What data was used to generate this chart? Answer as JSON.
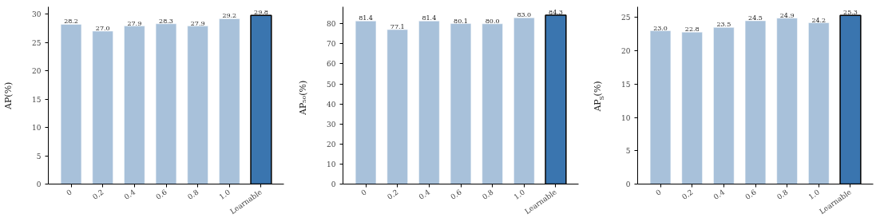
{
  "chart_data": [
    {
      "type": "bar",
      "categories": [
        "0",
        "0.2",
        "0.4",
        "0.6",
        "0.8",
        "1.0",
        "Learnable"
      ],
      "values": [
        28.2,
        27.0,
        27.9,
        28.3,
        27.9,
        29.2,
        29.8
      ],
      "value_labels": [
        "28.2",
        "27.0",
        "27.9",
        "28.3",
        "27.9",
        "29.2",
        "29.8"
      ],
      "colors": [
        "#a8c1da",
        "#a8c1da",
        "#a8c1da",
        "#a8c1da",
        "#a8c1da",
        "#a8c1da",
        "#3a75af"
      ],
      "ylabel": "AP(%)",
      "ylim": [
        0,
        31.3
      ],
      "yticks": [
        0,
        5,
        10,
        15,
        20,
        25,
        30
      ],
      "grid": false
    },
    {
      "type": "bar",
      "categories": [
        "0",
        "0.2",
        "0.4",
        "0.6",
        "0.8",
        "1.0",
        "Learnable"
      ],
      "values": [
        81.4,
        77.1,
        81.4,
        80.1,
        80.0,
        83.0,
        84.3
      ],
      "value_labels": [
        "81.4",
        "77.1",
        "81.4",
        "80.1",
        "80.0",
        "83.0",
        "84.3"
      ],
      "colors": [
        "#a8c1da",
        "#a8c1da",
        "#a8c1da",
        "#a8c1da",
        "#a8c1da",
        "#a8c1da",
        "#3a75af"
      ],
      "ylabel": "AP₅₀(%)",
      "ylim": [
        0,
        88.5
      ],
      "yticks": [
        0,
        10,
        20,
        30,
        40,
        50,
        60,
        70,
        80
      ],
      "grid": false
    },
    {
      "type": "bar",
      "categories": [
        "0",
        "0.2",
        "0.4",
        "0.6",
        "0.8",
        "1.0",
        "Learnable"
      ],
      "values": [
        23.0,
        22.8,
        23.5,
        24.5,
        24.9,
        24.2,
        25.3
      ],
      "value_labels": [
        "23.0",
        "22.8",
        "23.5",
        "24.5",
        "24.9",
        "24.2",
        "25.3"
      ],
      "colors": [
        "#a8c1da",
        "#a8c1da",
        "#a8c1da",
        "#a8c1da",
        "#a8c1da",
        "#a8c1da",
        "#3a75af"
      ],
      "ylabel": "AP$_{S}$(%)",
      "ylim": [
        0,
        26.6
      ],
      "yticks": [
        0,
        5,
        10,
        15,
        20,
        25
      ],
      "grid": false
    }
  ]
}
